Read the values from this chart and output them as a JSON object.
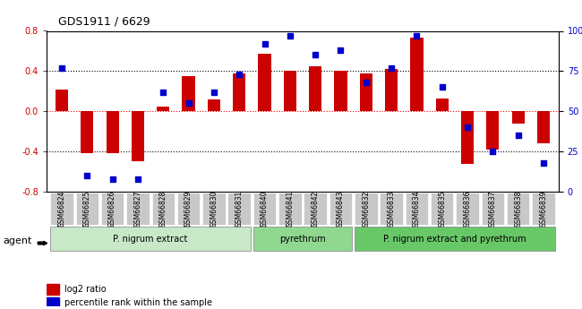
{
  "title": "GDS1911 / 6629",
  "samples": [
    "GSM66824",
    "GSM66825",
    "GSM66826",
    "GSM66827",
    "GSM66828",
    "GSM66829",
    "GSM66830",
    "GSM66831",
    "GSM66840",
    "GSM66841",
    "GSM66842",
    "GSM66843",
    "GSM66832",
    "GSM66833",
    "GSM66834",
    "GSM66835",
    "GSM66836",
    "GSM66837",
    "GSM66838",
    "GSM66839"
  ],
  "log2_ratio": [
    0.22,
    -0.42,
    -0.42,
    -0.5,
    0.05,
    0.35,
    0.12,
    0.38,
    0.57,
    0.4,
    0.45,
    0.4,
    0.38,
    0.42,
    0.73,
    0.13,
    -0.52,
    -0.38,
    -0.12,
    -0.32
  ],
  "percentile": [
    77,
    10,
    8,
    8,
    62,
    55,
    62,
    73,
    92,
    97,
    85,
    88,
    68,
    77,
    97,
    65,
    40,
    25,
    35,
    18
  ],
  "groups": [
    {
      "label": "P. nigrum extract",
      "start": 0,
      "end": 8,
      "color": "#c8e6c9"
    },
    {
      "label": "pyrethrum",
      "start": 8,
      "end": 12,
      "color": "#a5d6a7"
    },
    {
      "label": "P. nigrum extract and pyrethrum",
      "start": 12,
      "end": 20,
      "color": "#66bb6a"
    }
  ],
  "bar_color": "#cc0000",
  "dot_color": "#0000cc",
  "ylim_left": [
    -0.8,
    0.8
  ],
  "ylim_right": [
    0,
    100
  ],
  "yticks_left": [
    -0.8,
    -0.4,
    0.0,
    0.4,
    0.8
  ],
  "yticks_right": [
    0,
    25,
    50,
    75,
    100
  ],
  "hlines": [
    0.4,
    0.0,
    -0.4
  ],
  "hline_colors": [
    "black",
    "red",
    "black"
  ],
  "hline_styles": [
    "dotted",
    "dotted",
    "dotted"
  ],
  "legend_bar_label": "log2 ratio",
  "legend_dot_label": "percentile rank within the sample",
  "agent_label": "agent",
  "bg_color": "#f0f0f0"
}
